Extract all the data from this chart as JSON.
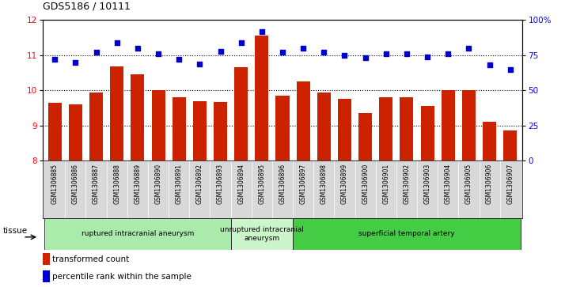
{
  "title": "GDS5186 / 10111",
  "samples": [
    "GSM1306885",
    "GSM1306886",
    "GSM1306887",
    "GSM1306888",
    "GSM1306889",
    "GSM1306890",
    "GSM1306891",
    "GSM1306892",
    "GSM1306893",
    "GSM1306894",
    "GSM1306895",
    "GSM1306896",
    "GSM1306897",
    "GSM1306898",
    "GSM1306899",
    "GSM1306900",
    "GSM1306901",
    "GSM1306902",
    "GSM1306903",
    "GSM1306904",
    "GSM1306905",
    "GSM1306906",
    "GSM1306907"
  ],
  "bar_values": [
    9.65,
    9.6,
    9.95,
    10.68,
    10.45,
    10.0,
    9.8,
    9.7,
    9.68,
    10.65,
    11.55,
    9.85,
    10.25,
    9.95,
    9.75,
    9.35,
    9.8,
    9.8,
    9.55,
    10.0,
    10.0,
    9.1,
    8.85
  ],
  "dot_values": [
    72,
    70,
    77,
    84,
    80,
    76,
    72,
    69,
    78,
    84,
    92,
    77,
    80,
    77,
    75,
    73,
    76,
    76,
    74,
    76,
    80,
    68,
    65
  ],
  "bar_color": "#cc2200",
  "dot_color": "#0000cc",
  "ylim_left": [
    8,
    12
  ],
  "ylim_right": [
    0,
    100
  ],
  "yticks_left": [
    8,
    9,
    10,
    11,
    12
  ],
  "yticks_right": [
    0,
    25,
    50,
    75,
    100
  ],
  "ytick_labels_right": [
    "0",
    "25",
    "50",
    "75",
    "100%"
  ],
  "groups": [
    {
      "label": "ruptured intracranial aneurysm",
      "start": 0,
      "end": 9,
      "color": "#aaeaaa"
    },
    {
      "label": "unruptured intracranial\naneurysm",
      "start": 9,
      "end": 12,
      "color": "#ccf5cc"
    },
    {
      "label": "superficial temporal artery",
      "start": 12,
      "end": 23,
      "color": "#44cc44"
    }
  ],
  "tissue_label": "tissue",
  "legend_bar_label": "transformed count",
  "legend_dot_label": "percentile rank within the sample",
  "grid_dotted_at": [
    9,
    10,
    11
  ]
}
